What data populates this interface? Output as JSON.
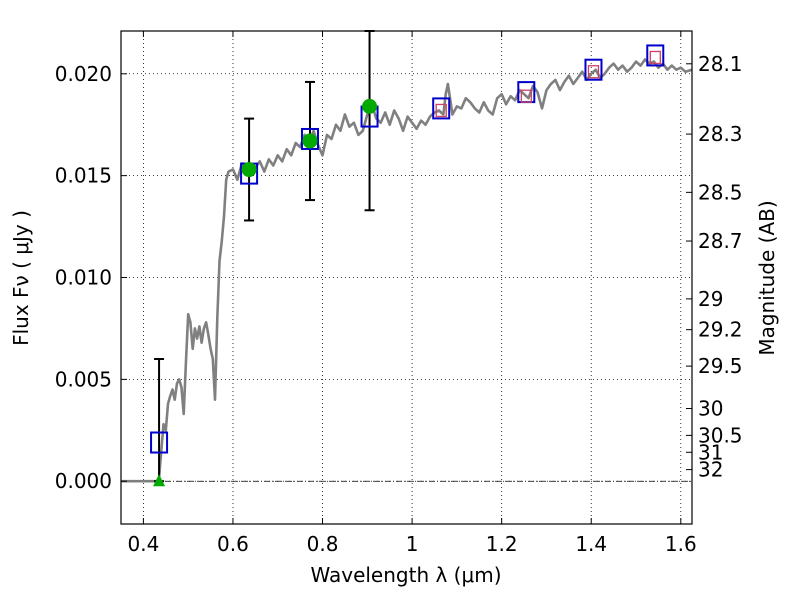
{
  "chart_data": {
    "type": "scatter",
    "title": "",
    "xlabel": "Wavelength  λ (μm)",
    "ylabel": "Flux  Fν  ( μJy )",
    "y2label": "Magnitude (AB)",
    "xlim": [
      0.35,
      1.625
    ],
    "ylim": [
      -0.0021,
      0.0221
    ],
    "xticks": [
      {
        "value": 0.4,
        "label": "0.4"
      },
      {
        "value": 0.6,
        "label": "0.6"
      },
      {
        "value": 0.8,
        "label": "0.8"
      },
      {
        "value": 1.0,
        "label": "1"
      },
      {
        "value": 1.2,
        "label": "1.2"
      },
      {
        "value": 1.4,
        "label": "1.4"
      },
      {
        "value": 1.6,
        "label": "1.6"
      }
    ],
    "yticks": [
      {
        "value": 0.0,
        "label": "0.000"
      },
      {
        "value": 0.005,
        "label": "0.005"
      },
      {
        "value": 0.01,
        "label": "0.010"
      },
      {
        "value": 0.015,
        "label": "0.015"
      },
      {
        "value": 0.02,
        "label": "0.020"
      }
    ],
    "mag_ticks": [
      {
        "label": "28.1",
        "flux": 0.02049
      },
      {
        "label": "28.3",
        "flux": 0.01704
      },
      {
        "label": "28.5",
        "flux": 0.01418
      },
      {
        "label": "28.7",
        "flux": 0.01179
      },
      {
        "label": "29",
        "flux": 0.00895
      },
      {
        "label": "29.2",
        "flux": 0.00744
      },
      {
        "label": "29.5",
        "flux": 0.00565
      },
      {
        "label": "30",
        "flux": 0.00357
      },
      {
        "label": "30.5",
        "flux": 0.00225
      },
      {
        "label": "31",
        "flux": 0.00142
      },
      {
        "label": "32",
        "flux": 0.00057
      }
    ],
    "grid": true,
    "model_spectrum": {
      "color": "#808080",
      "x": [
        0.35,
        0.4,
        0.43,
        0.435,
        0.44,
        0.445,
        0.45,
        0.455,
        0.46,
        0.465,
        0.47,
        0.475,
        0.48,
        0.485,
        0.49,
        0.495,
        0.5,
        0.505,
        0.51,
        0.515,
        0.52,
        0.525,
        0.53,
        0.535,
        0.54,
        0.545,
        0.55,
        0.555,
        0.56,
        0.565,
        0.57,
        0.575,
        0.58,
        0.585,
        0.59,
        0.6,
        0.61,
        0.62,
        0.63,
        0.64,
        0.65,
        0.66,
        0.67,
        0.68,
        0.69,
        0.7,
        0.71,
        0.72,
        0.73,
        0.74,
        0.75,
        0.76,
        0.77,
        0.78,
        0.79,
        0.8,
        0.81,
        0.82,
        0.83,
        0.84,
        0.85,
        0.86,
        0.87,
        0.88,
        0.89,
        0.9,
        0.91,
        0.92,
        0.93,
        0.94,
        0.95,
        0.96,
        0.97,
        0.98,
        0.99,
        1.0,
        1.01,
        1.02,
        1.03,
        1.04,
        1.05,
        1.06,
        1.07,
        1.075,
        1.08,
        1.09,
        1.1,
        1.11,
        1.12,
        1.13,
        1.14,
        1.15,
        1.16,
        1.17,
        1.18,
        1.19,
        1.2,
        1.21,
        1.22,
        1.23,
        1.24,
        1.25,
        1.26,
        1.27,
        1.28,
        1.29,
        1.3,
        1.31,
        1.32,
        1.33,
        1.34,
        1.35,
        1.36,
        1.37,
        1.38,
        1.39,
        1.4,
        1.41,
        1.42,
        1.43,
        1.44,
        1.45,
        1.46,
        1.47,
        1.48,
        1.49,
        1.5,
        1.51,
        1.52,
        1.53,
        1.54,
        1.55,
        1.56,
        1.57,
        1.58,
        1.59,
        1.6,
        1.61,
        1.625
      ],
      "y": [
        0.0,
        0.0,
        0.0,
        0.0002,
        0.0015,
        0.0028,
        0.0025,
        0.0038,
        0.0042,
        0.0045,
        0.004,
        0.0048,
        0.005,
        0.0046,
        0.0033,
        0.0058,
        0.0082,
        0.0078,
        0.0065,
        0.0075,
        0.007,
        0.0076,
        0.0068,
        0.0075,
        0.0078,
        0.0072,
        0.0065,
        0.006,
        0.004,
        0.008,
        0.0108,
        0.0118,
        0.013,
        0.0148,
        0.0152,
        0.0153,
        0.0148,
        0.0156,
        0.0155,
        0.015,
        0.0154,
        0.0157,
        0.0152,
        0.0158,
        0.0155,
        0.016,
        0.0157,
        0.0163,
        0.016,
        0.0166,
        0.0164,
        0.017,
        0.0166,
        0.0172,
        0.0165,
        0.016,
        0.017,
        0.0168,
        0.0175,
        0.0172,
        0.018,
        0.0174,
        0.0176,
        0.017,
        0.0172,
        0.018,
        0.0185,
        0.0178,
        0.0176,
        0.0181,
        0.0175,
        0.0182,
        0.0178,
        0.0172,
        0.0179,
        0.0176,
        0.0173,
        0.0177,
        0.0175,
        0.0179,
        0.0181,
        0.0182,
        0.018,
        0.019,
        0.0195,
        0.018,
        0.0184,
        0.0183,
        0.0188,
        0.0186,
        0.0183,
        0.0181,
        0.0186,
        0.0182,
        0.018,
        0.0188,
        0.019,
        0.0185,
        0.0189,
        0.0187,
        0.0192,
        0.019,
        0.0188,
        0.0194,
        0.0191,
        0.0183,
        0.0192,
        0.0195,
        0.0197,
        0.0192,
        0.0196,
        0.0199,
        0.0195,
        0.0198,
        0.0201,
        0.0197,
        0.02,
        0.0202,
        0.0198,
        0.02,
        0.0203,
        0.0205,
        0.0202,
        0.0204,
        0.0201,
        0.0203,
        0.0206,
        0.0204,
        0.0207,
        0.0205,
        0.0206,
        0.0203,
        0.0205,
        0.0202,
        0.0204,
        0.0202,
        0.0203,
        0.0201,
        0.0202
      ]
    },
    "photometry_squares": {
      "color": "#0000cc",
      "x": [
        0.435,
        0.636,
        0.772,
        0.905,
        1.065,
        1.255,
        1.405,
        1.543
      ],
      "y": [
        0.0019,
        0.0151,
        0.0168,
        0.0179,
        0.0183,
        0.0191,
        0.0202,
        0.0209
      ]
    },
    "model_markers": {
      "color": "#d04060",
      "x": [
        1.065,
        1.255,
        1.405,
        1.543
      ],
      "y": [
        0.0182,
        0.0189,
        0.0201,
        0.0208
      ]
    },
    "measurements": {
      "color": "#00aa00",
      "points": [
        {
          "x": 0.636,
          "y": 0.0153,
          "err_low": 0.0128,
          "err_high": 0.0178
        },
        {
          "x": 0.772,
          "y": 0.0167,
          "err_low": 0.0138,
          "err_high": 0.0196
        },
        {
          "x": 0.905,
          "y": 0.0184,
          "err_low": 0.0133,
          "err_high": 0.0221
        }
      ]
    },
    "upper_limit": {
      "color": "#00aa00",
      "x": 0.435,
      "y": 0.0,
      "err_low": 0.0,
      "err_high": 0.006
    }
  }
}
